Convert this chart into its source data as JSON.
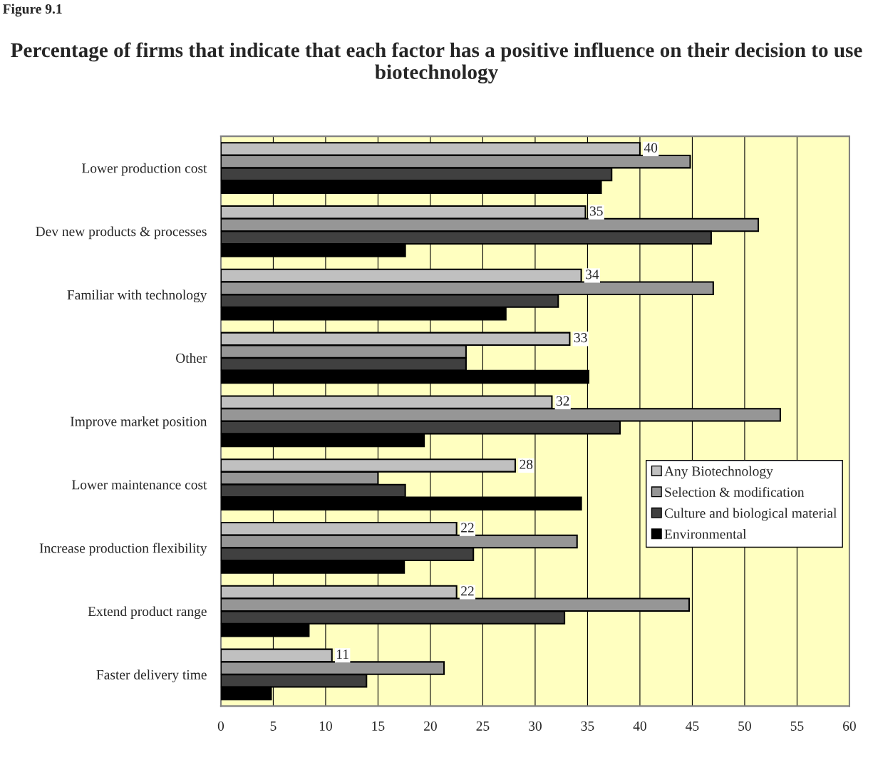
{
  "chart_data": {
    "type": "bar",
    "orientation": "horizontal",
    "title": "Percentage of firms that indicate that each factor has a positive influence on their decision to use biotechnology",
    "annotations": [
      "Figure 9.1"
    ],
    "categories": [
      "Lower production cost",
      "Dev new products & processes",
      "Familiar with technology",
      "Other",
      "Improve market position",
      "Lower maintenance cost",
      "Increase production flexibility",
      "Extend product range",
      "Faster delivery time"
    ],
    "series": [
      {
        "name": "Any Biotechnology",
        "color": "#c0c0c0",
        "values": [
          40.0,
          34.8,
          34.4,
          33.3,
          31.6,
          28.1,
          22.5,
          22.5,
          10.6
        ],
        "value_labels": [
          "40",
          "35",
          "34",
          "33",
          "32",
          "28",
          "22",
          "22",
          "11"
        ]
      },
      {
        "name": "Selection & modification",
        "color": "#969696",
        "values": [
          44.8,
          51.3,
          47.0,
          23.4,
          53.4,
          15.0,
          34.0,
          44.7,
          21.3
        ]
      },
      {
        "name": "Culture and biological material",
        "color": "#404040",
        "values": [
          37.3,
          46.8,
          32.2,
          23.4,
          38.1,
          17.6,
          24.1,
          32.8,
          13.9
        ]
      },
      {
        "name": "Environmental",
        "color": "#000000",
        "values": [
          36.3,
          17.6,
          27.2,
          35.1,
          19.4,
          34.4,
          17.5,
          8.4,
          4.8
        ]
      }
    ],
    "xlim": [
      0,
      60
    ],
    "xticks": [
      0,
      5,
      10,
      15,
      20,
      25,
      30,
      35,
      40,
      45,
      50,
      55,
      60
    ],
    "grid": "x",
    "legend": "right"
  }
}
